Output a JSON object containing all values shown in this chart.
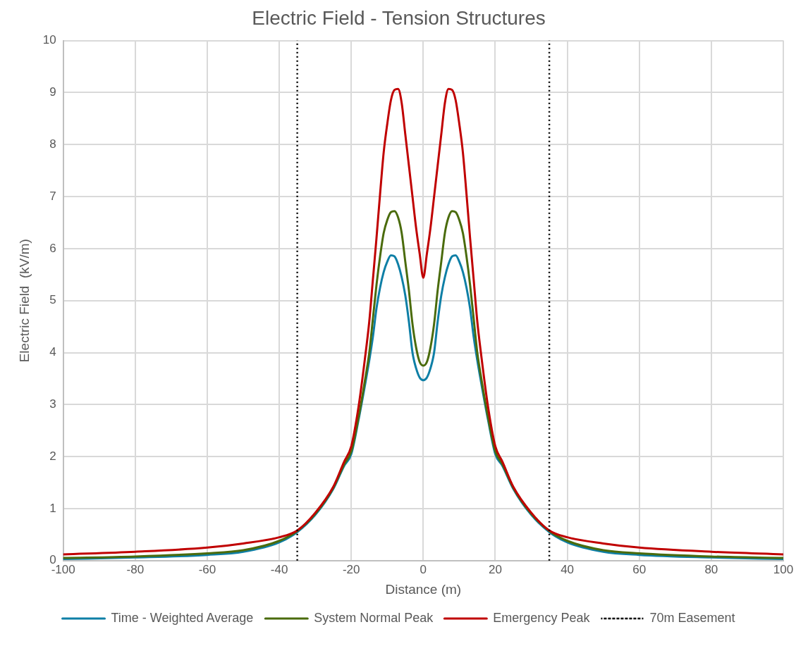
{
  "chart_data": {
    "type": "line",
    "title": "Electric Field - Tension Structures",
    "xlabel": "Distance (m)",
    "ylabel": "Electric Field  (kV/m)",
    "x": [
      -100,
      -80,
      -60,
      -50,
      -40,
      -35,
      -30,
      -25,
      -22,
      -20,
      -18,
      -16,
      -15,
      -14,
      -13,
      -12,
      -11,
      -10,
      -9,
      -8,
      -7,
      -6,
      -5,
      -4,
      -3,
      -2,
      -1,
      0,
      1,
      2,
      3,
      4,
      5,
      6,
      7,
      8,
      9,
      10,
      11,
      12,
      13,
      14,
      15,
      16,
      18,
      20,
      22,
      25,
      30,
      35,
      40,
      50,
      60,
      80,
      100
    ],
    "series": [
      {
        "name": "Time - Weighted Average",
        "color": "#0e7fa6",
        "values": [
          0.03,
          0.06,
          0.11,
          0.17,
          0.35,
          0.55,
          0.88,
          1.38,
          1.82,
          2.05,
          2.7,
          3.45,
          3.85,
          4.3,
          4.85,
          5.25,
          5.55,
          5.75,
          5.87,
          5.85,
          5.7,
          5.45,
          5.1,
          4.6,
          4.0,
          3.7,
          3.52,
          3.47,
          3.52,
          3.7,
          4.0,
          4.6,
          5.1,
          5.45,
          5.7,
          5.85,
          5.87,
          5.75,
          5.55,
          5.25,
          4.85,
          4.3,
          3.85,
          3.45,
          2.7,
          2.05,
          1.82,
          1.38,
          0.88,
          0.55,
          0.35,
          0.17,
          0.11,
          0.06,
          0.03
        ]
      },
      {
        "name": "System Normal Peak",
        "color": "#4a6b0c",
        "values": [
          0.05,
          0.08,
          0.14,
          0.2,
          0.38,
          0.57,
          0.9,
          1.4,
          1.85,
          2.1,
          2.75,
          3.55,
          4.0,
          4.65,
          5.3,
          5.85,
          6.3,
          6.55,
          6.7,
          6.72,
          6.6,
          6.3,
          5.75,
          5.2,
          4.55,
          4.1,
          3.82,
          3.75,
          3.82,
          4.1,
          4.55,
          5.2,
          5.75,
          6.3,
          6.6,
          6.72,
          6.7,
          6.55,
          6.3,
          5.85,
          5.3,
          4.65,
          4.0,
          3.55,
          2.75,
          2.1,
          1.85,
          1.4,
          0.9,
          0.57,
          0.38,
          0.2,
          0.14,
          0.08,
          0.05
        ]
      },
      {
        "name": "Emergency Peak",
        "color": "#c00000",
        "values": [
          0.12,
          0.17,
          0.25,
          0.33,
          0.45,
          0.58,
          0.92,
          1.42,
          1.9,
          2.2,
          2.95,
          4.0,
          4.6,
          5.4,
          6.2,
          7.05,
          7.85,
          8.4,
          8.85,
          9.05,
          9.07,
          8.8,
          8.2,
          7.6,
          7.0,
          6.4,
          5.9,
          5.44,
          5.9,
          6.4,
          7.0,
          7.6,
          8.2,
          8.8,
          9.07,
          9.05,
          8.85,
          8.4,
          7.85,
          7.05,
          6.2,
          5.4,
          4.6,
          4.0,
          2.95,
          2.2,
          1.9,
          1.42,
          0.92,
          0.58,
          0.45,
          0.33,
          0.25,
          0.17,
          0.12
        ]
      }
    ],
    "ref_lines": [
      {
        "axis": "x",
        "value": -35,
        "label": "70m Easement",
        "color": "#000000",
        "line_style": "dotted"
      },
      {
        "axis": "x",
        "value": 35,
        "color": "#000000",
        "line_style": "dotted"
      }
    ],
    "xlim": [
      -100,
      100
    ],
    "xticks": [
      -100,
      -80,
      -60,
      -40,
      -20,
      0,
      20,
      40,
      60,
      80,
      100
    ],
    "ylim": [
      0,
      10
    ],
    "yticks": [
      0,
      1,
      2,
      3,
      4,
      5,
      6,
      7,
      8,
      9,
      10
    ],
    "grid": true,
    "legend": "bottom",
    "marker": "none",
    "line_style": "solid"
  }
}
